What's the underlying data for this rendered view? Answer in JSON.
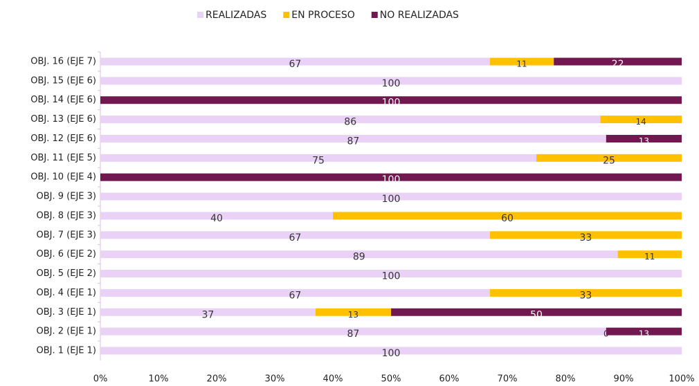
{
  "chart_data": {
    "type": "stacked-bar-horizontal",
    "categories": [
      "OBJ. 16 (EJE 7)",
      "OBJ. 15 (EJE 6)",
      "OBJ. 14 (EJE 6)",
      "OBJ. 13 (EJE 6)",
      "OBJ. 12 (EJE 6)",
      "OBJ. 11 (EJE 5)",
      "OBJ. 10 (EJE 4)",
      "OBJ. 9 (EJE 3)",
      "OBJ. 8 (EJE 3)",
      "OBJ. 7 (EJE 3)",
      "OBJ. 6 (EJE 2)",
      "OBJ. 5 (EJE 2)",
      "OBJ. 4 (EJE 1)",
      "OBJ. 3 (EJE 1)",
      "OBJ. 2 (EJE 1)",
      "OBJ. 1 (EJE 1)"
    ],
    "series": [
      {
        "name": "REALIZADAS",
        "color": "#ead1f6",
        "label_color": "#333333",
        "values": [
          67,
          100,
          null,
          86,
          87,
          75,
          null,
          100,
          40,
          67,
          89,
          100,
          67,
          37,
          87,
          100
        ]
      },
      {
        "name": "EN PROCESO",
        "color": "#ffc000",
        "label_color": "#333333",
        "values": [
          11,
          null,
          null,
          14,
          null,
          25,
          null,
          null,
          60,
          33,
          11,
          null,
          33,
          13,
          0,
          null
        ]
      },
      {
        "name": "NO REALIZADAS",
        "color": "#70184f",
        "label_color": "#ffffff",
        "values": [
          22,
          null,
          100,
          null,
          13,
          null,
          100,
          null,
          null,
          null,
          null,
          null,
          null,
          50,
          13,
          null
        ]
      }
    ],
    "xlim": [
      0,
      100
    ],
    "xticks": [
      {
        "value": 0,
        "label": "0%"
      },
      {
        "value": 10,
        "label": "10%"
      },
      {
        "value": 20,
        "label": "20%"
      },
      {
        "value": 30,
        "label": "30%"
      },
      {
        "value": 40,
        "label": "40%"
      },
      {
        "value": 50,
        "label": "50%"
      },
      {
        "value": 60,
        "label": "60%"
      },
      {
        "value": 70,
        "label": "70%"
      },
      {
        "value": 80,
        "label": "80%"
      },
      {
        "value": 90,
        "label": "90%"
      },
      {
        "value": 100,
        "label": "100%"
      }
    ],
    "legend": "top"
  }
}
